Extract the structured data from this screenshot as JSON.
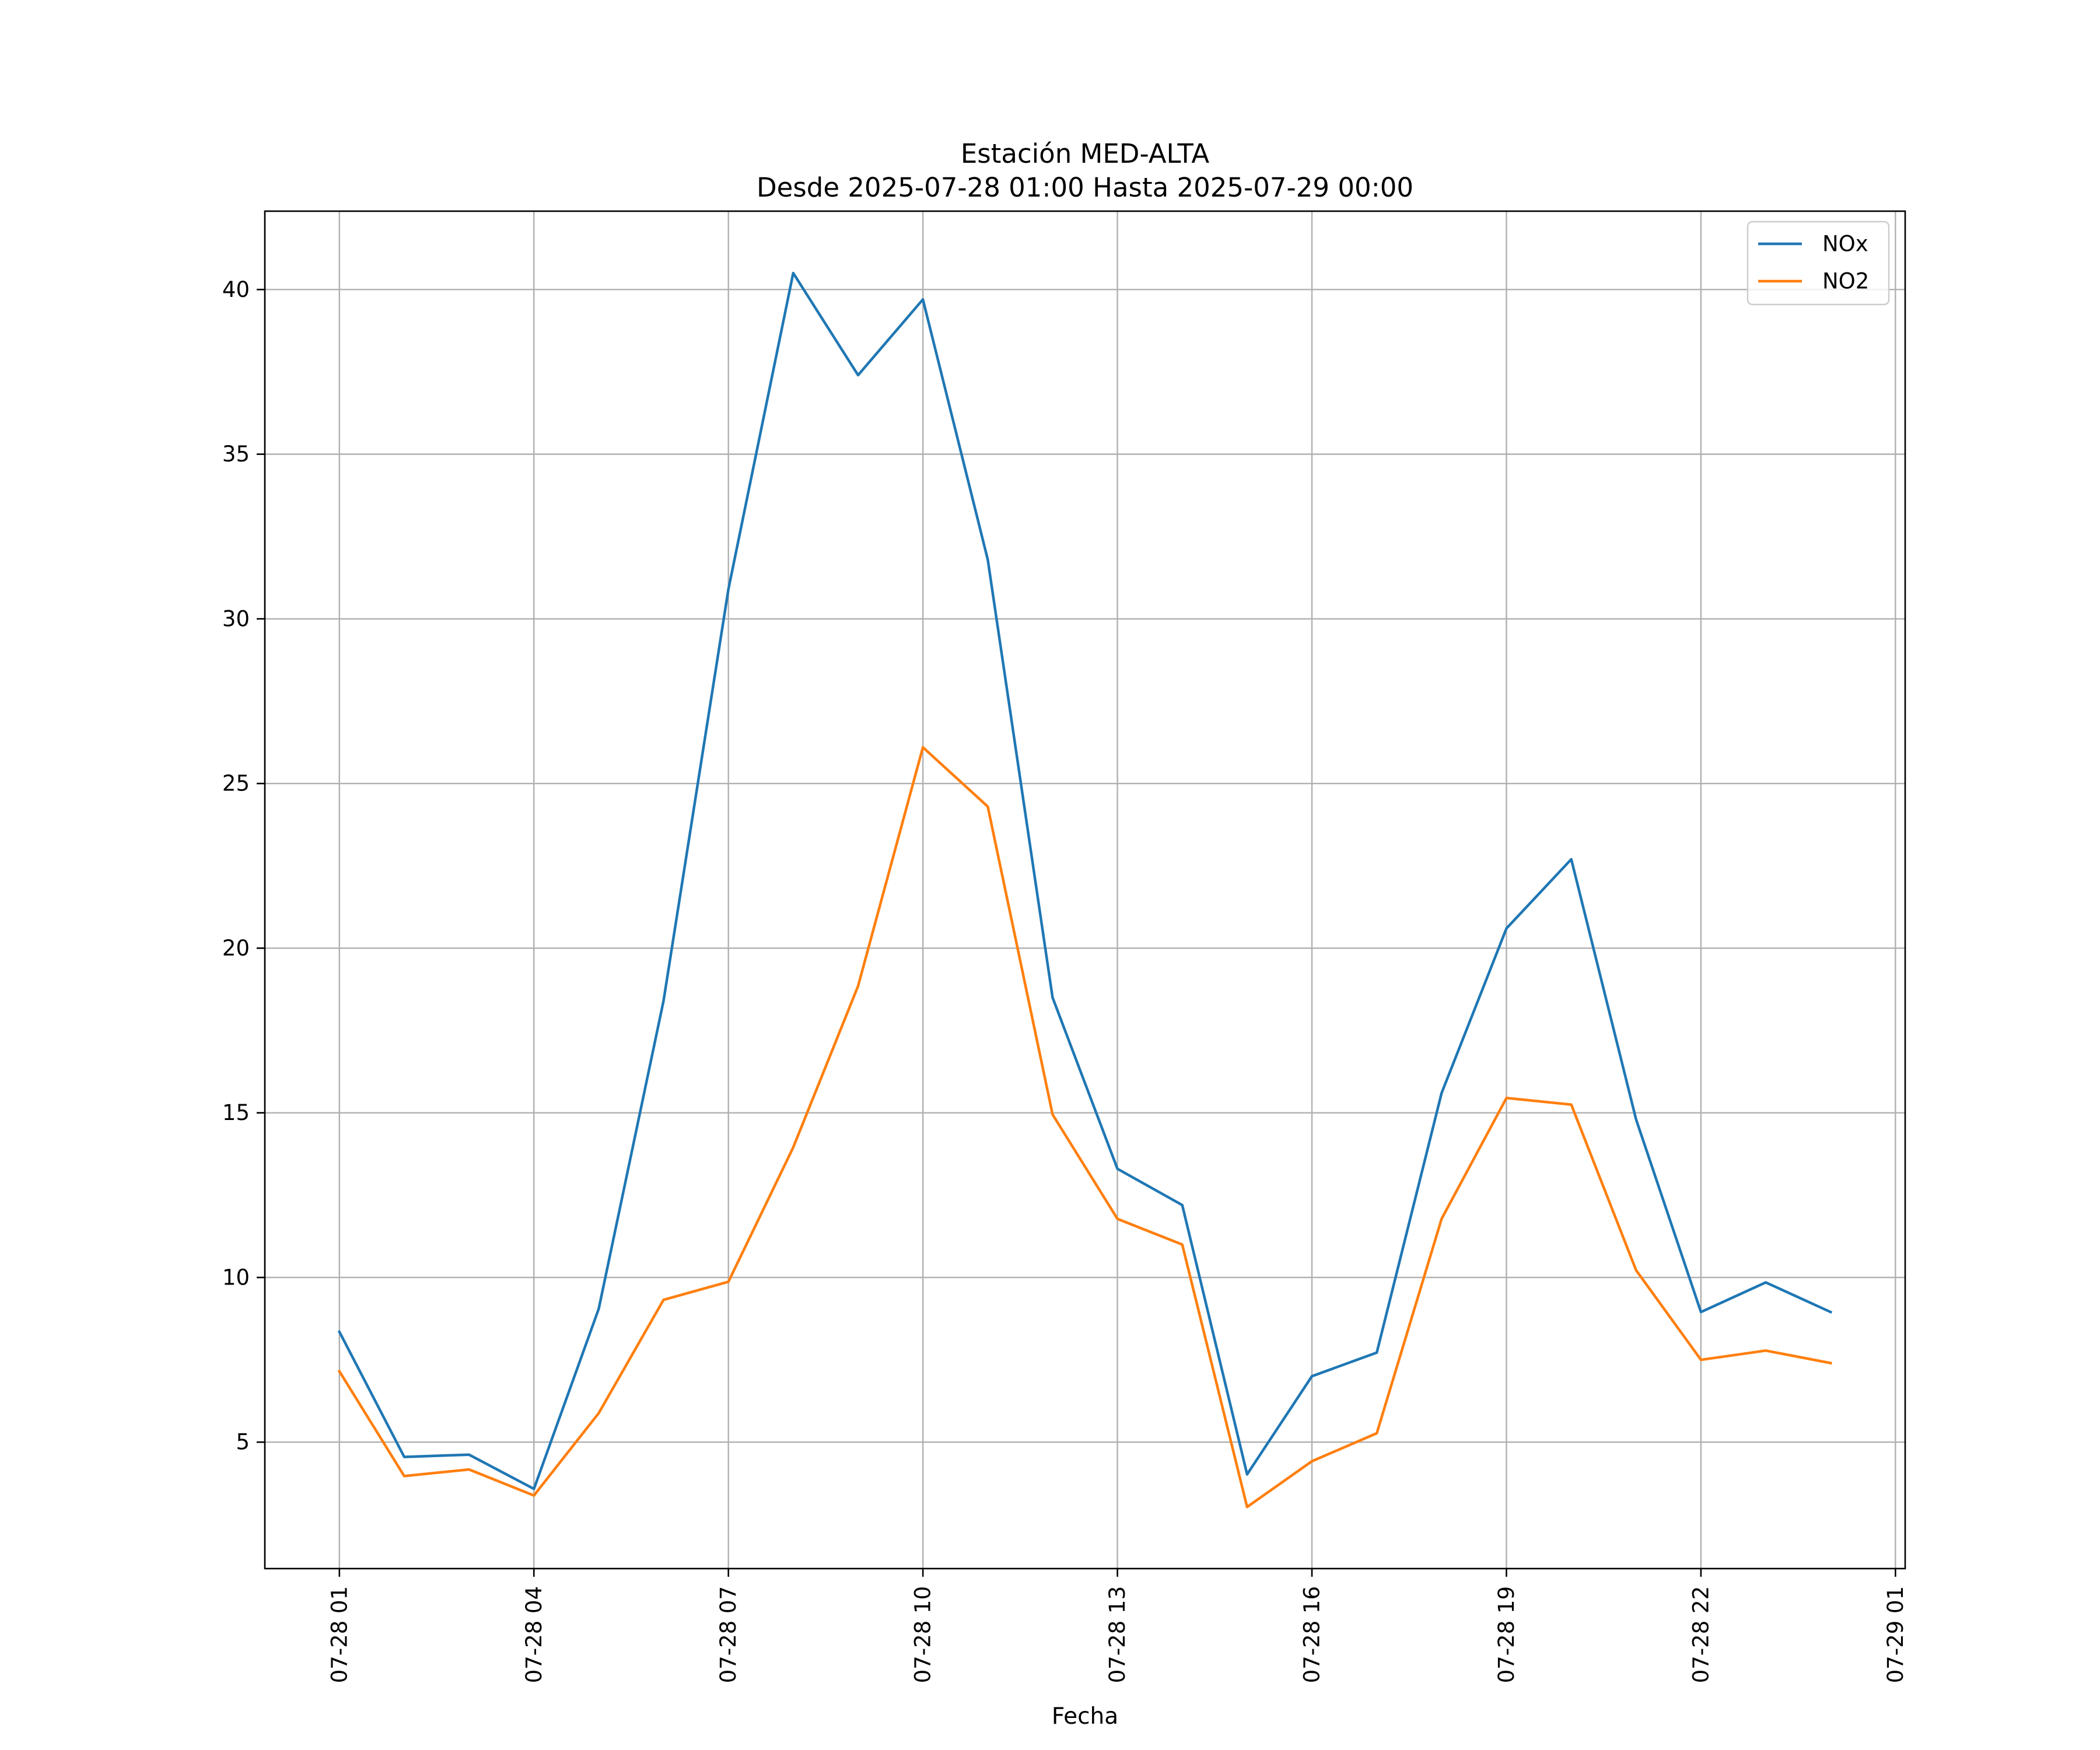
{
  "chart_data": {
    "type": "line",
    "title": "Estación MED-ALTA",
    "subtitle": "Desde 2025-07-28 01:00 Hasta 2025-07-29 00:00",
    "xlabel": "Fecha",
    "ylabel": "",
    "x": [
      "2025-07-28 01:00",
      "2025-07-28 02:00",
      "2025-07-28 03:00",
      "2025-07-28 04:00",
      "2025-07-28 05:00",
      "2025-07-28 06:00",
      "2025-07-28 07:00",
      "2025-07-28 08:00",
      "2025-07-28 09:00",
      "2025-07-28 10:00",
      "2025-07-28 11:00",
      "2025-07-28 12:00",
      "2025-07-28 13:00",
      "2025-07-28 14:00",
      "2025-07-28 15:00",
      "2025-07-28 16:00",
      "2025-07-28 17:00",
      "2025-07-28 18:00",
      "2025-07-28 19:00",
      "2025-07-28 20:00",
      "2025-07-28 21:00",
      "2025-07-28 22:00",
      "2025-07-28 23:00",
      "2025-07-29 00:00"
    ],
    "x_ticks": [
      "07-28 01",
      "07-28 04",
      "07-28 07",
      "07-28 10",
      "07-28 13",
      "07-28 16",
      "07-28 19",
      "07-28 22",
      "07-29 01"
    ],
    "x_tick_values": [
      "2025-07-28 01:00",
      "2025-07-28 04:00",
      "2025-07-28 07:00",
      "2025-07-28 10:00",
      "2025-07-28 13:00",
      "2025-07-28 16:00",
      "2025-07-28 19:00",
      "2025-07-28 22:00",
      "2025-07-29 01:00"
    ],
    "xlim": [
      "2025-07-27 23:51",
      "2025-07-29 01:09"
    ],
    "y_ticks": [
      5,
      10,
      15,
      20,
      25,
      30,
      35,
      40
    ],
    "ylim": [
      1.16,
      42.38
    ],
    "grid": true,
    "legend_position": "top-right",
    "series": [
      {
        "name": "NOx",
        "color": "#1f77b4",
        "values": [
          8.35,
          4.55,
          4.62,
          3.58,
          9.05,
          18.4,
          30.9,
          40.5,
          37.4,
          39.7,
          31.8,
          18.5,
          13.3,
          12.2,
          4.02,
          7.0,
          7.72,
          15.6,
          20.6,
          22.7,
          14.8,
          8.95,
          9.85,
          8.95
        ]
      },
      {
        "name": "NO2",
        "color": "#ff7f0e",
        "values": [
          7.15,
          3.97,
          4.17,
          3.38,
          5.88,
          9.32,
          9.87,
          13.95,
          18.85,
          26.1,
          24.3,
          14.95,
          11.78,
          11.0,
          3.03,
          4.42,
          5.27,
          11.78,
          15.45,
          15.25,
          10.22,
          7.5,
          7.78,
          7.4
        ]
      }
    ]
  }
}
